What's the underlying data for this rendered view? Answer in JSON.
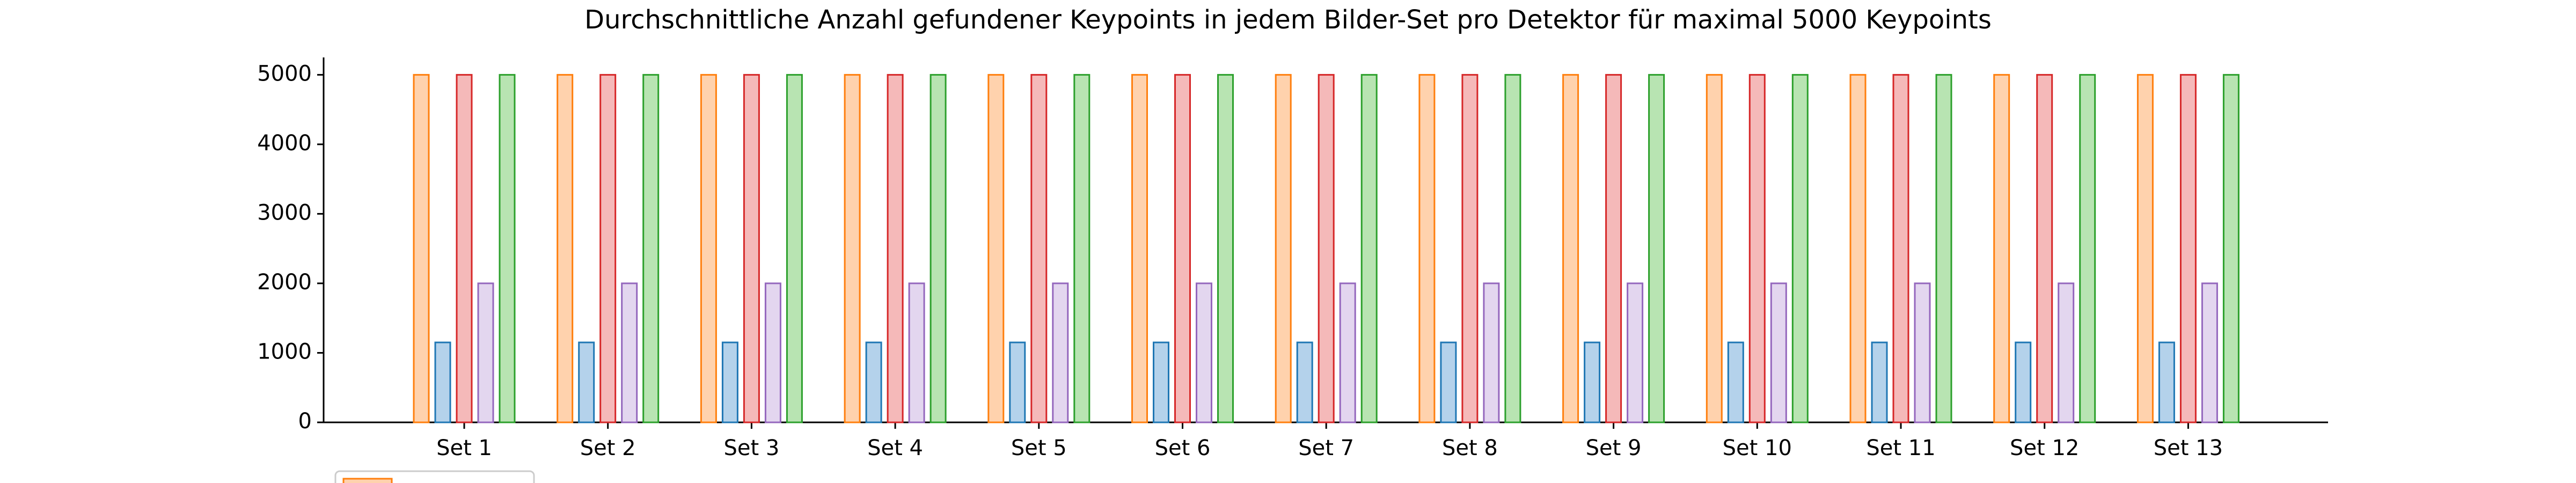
{
  "chart_data": {
    "type": "bar",
    "title": "Durchschnittliche Anzahl gefundener Keypoints in jedem Bilder-Set pro Detektor für maximal 5000 Keypoints",
    "categories": [
      "Set 1",
      "Set 2",
      "Set 3",
      "Set 4",
      "Set 5",
      "Set 6",
      "Set 7",
      "Set 8",
      "Set 9",
      "Set 10",
      "Set 11",
      "Set 12",
      "Set 13"
    ],
    "series": [
      {
        "color": "#ff7f0e",
        "fill": "#ffd2ad",
        "values": [
          5000,
          5000,
          5000,
          5000,
          5000,
          5000,
          5000,
          5000,
          5000,
          5000,
          5000,
          5000,
          5000
        ]
      },
      {
        "color": "#1f77b4",
        "fill": "#b4d2eb",
        "values": [
          1150,
          1150,
          1150,
          1150,
          1150,
          1150,
          1150,
          1150,
          1150,
          1150,
          1150,
          1150,
          1150
        ]
      },
      {
        "color": "#d62728",
        "fill": "#f5b9b9",
        "values": [
          5000,
          5000,
          5000,
          5000,
          5000,
          5000,
          5000,
          5000,
          5000,
          5000,
          5000,
          5000,
          5000
        ]
      },
      {
        "color": "#9467bd",
        "fill": "#e3d6ef",
        "values": [
          2000,
          2000,
          2000,
          2000,
          2000,
          2000,
          2000,
          2000,
          2000,
          2000,
          2000,
          2000,
          2000
        ]
      },
      {
        "color": "#2ca02c",
        "fill": "#b8e4b2",
        "values": [
          5000,
          5000,
          5000,
          5000,
          5000,
          5000,
          5000,
          5000,
          5000,
          5000,
          5000,
          5000,
          5000
        ]
      }
    ],
    "ylim": [
      0,
      5250
    ],
    "yticks": [
      0,
      1000,
      2000,
      3000,
      4000,
      5000
    ]
  }
}
